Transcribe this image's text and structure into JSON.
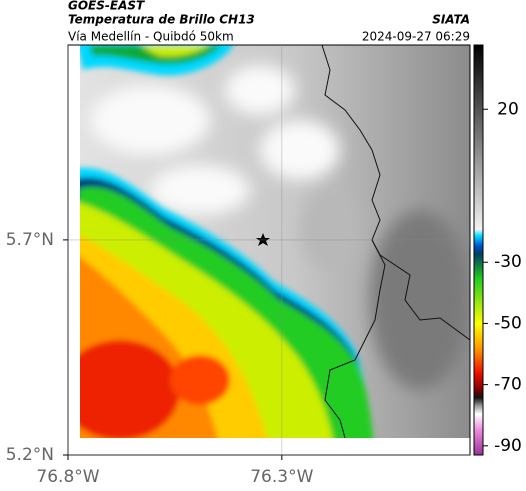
{
  "header": {
    "title": "GOES-EAST",
    "subtitle": "Temperatura de Brillo CH13",
    "location": "Vía Medellín - Quibdó 50km",
    "source": "SIATA",
    "timestamp": "2024-09-27 06:29"
  },
  "map": {
    "xlim": [
      -76.8,
      -75.86
    ],
    "ylim": [
      5.2,
      6.153
    ],
    "xticks": [
      {
        "value": -76.8,
        "label": "76.8°W"
      },
      {
        "value": -76.3,
        "label": "76.3°W"
      }
    ],
    "yticks": [
      {
        "value": 5.7,
        "label": "5.7°N"
      },
      {
        "value": 5.2,
        "label": "5.2°N"
      }
    ],
    "grid": true
  },
  "colorbar": {
    "lim": [
      -93,
      41
    ],
    "ticks": [
      20,
      -30,
      -50,
      -70,
      -90
    ]
  }
}
